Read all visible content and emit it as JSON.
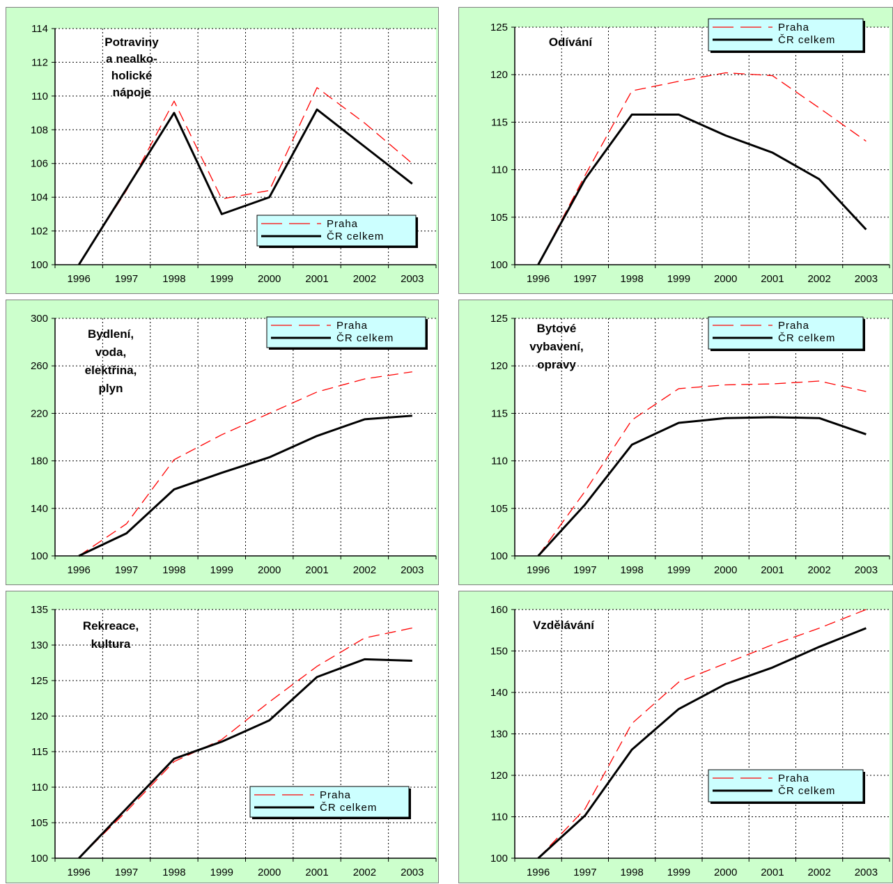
{
  "chart_data": [
    {
      "type": "line",
      "title": "Potraviny a nealko-holické nápoje",
      "title_lines": [
        "Potraviny",
        "a nealko-",
        "holické",
        "nápoje"
      ],
      "categories": [
        "1996",
        "1997",
        "1998",
        "1999",
        "2000",
        "2001",
        "2002",
        "2003"
      ],
      "ylim": [
        100,
        114
      ],
      "yticks": [
        100,
        102,
        104,
        106,
        108,
        110,
        112,
        114
      ],
      "grid": true,
      "legend": "bottom-right",
      "series": [
        {
          "name": "Praha",
          "color": "#ff0000",
          "style": "dashed",
          "values": [
            100,
            104.4,
            109.7,
            103.9,
            104.4,
            110.5,
            108.4,
            106.0
          ]
        },
        {
          "name": "ČR celkem",
          "color": "#000000",
          "style": "solid",
          "values": [
            100,
            104.5,
            109.0,
            103.0,
            104.0,
            109.2,
            107.0,
            104.8
          ]
        }
      ]
    },
    {
      "type": "line",
      "title": "Odívání",
      "title_lines": [
        "Odívání"
      ],
      "categories": [
        "1996",
        "1997",
        "1998",
        "1999",
        "2000",
        "2001",
        "2002",
        "2003"
      ],
      "ylim": [
        100,
        125
      ],
      "yticks": [
        100,
        105,
        110,
        115,
        120,
        125
      ],
      "grid": true,
      "legend": "top-right",
      "series": [
        {
          "name": "Praha",
          "color": "#ff0000",
          "style": "dashed",
          "values": [
            100,
            109.4,
            118.3,
            119.3,
            120.2,
            119.9,
            116.5,
            113.0
          ]
        },
        {
          "name": "ČR celkem",
          "color": "#000000",
          "style": "solid",
          "values": [
            100,
            109.0,
            115.8,
            115.8,
            113.6,
            111.8,
            109.0,
            103.7
          ]
        }
      ]
    },
    {
      "type": "line",
      "title": "Bydlení, voda, elektřina, plyn",
      "title_lines": [
        "Bydlení,",
        "voda,",
        "elektřina,",
        "plyn"
      ],
      "categories": [
        "1996",
        "1997",
        "1998",
        "1999",
        "2000",
        "2001",
        "2002",
        "2003"
      ],
      "ylim": [
        100,
        300
      ],
      "yticks": [
        100,
        140,
        180,
        220,
        260,
        300
      ],
      "grid": true,
      "legend": "top-right",
      "series": [
        {
          "name": "Praha",
          "color": "#ff0000",
          "style": "dashed",
          "values": [
            100,
            127,
            181,
            202,
            220,
            238,
            249,
            255
          ]
        },
        {
          "name": "ČR celkem",
          "color": "#000000",
          "style": "solid",
          "values": [
            100,
            119,
            156,
            170,
            183,
            201,
            215,
            218
          ]
        }
      ]
    },
    {
      "type": "line",
      "title": "Bytové vybavení, opravy",
      "title_lines": [
        "Bytové",
        "vybavení,",
        "opravy"
      ],
      "categories": [
        "1996",
        "1997",
        "1998",
        "1999",
        "2000",
        "2001",
        "2002",
        "2003"
      ],
      "ylim": [
        100,
        125
      ],
      "yticks": [
        100,
        105,
        110,
        115,
        120,
        125
      ],
      "grid": true,
      "legend": "top-right",
      "series": [
        {
          "name": "Praha",
          "color": "#ff0000",
          "style": "dashed",
          "values": [
            100,
            106.8,
            114.3,
            117.6,
            118.0,
            118.1,
            118.4,
            117.3
          ]
        },
        {
          "name": "ČR celkem",
          "color": "#000000",
          "style": "solid",
          "values": [
            100,
            105.4,
            111.7,
            114.0,
            114.5,
            114.6,
            114.5,
            112.8
          ]
        }
      ]
    },
    {
      "type": "line",
      "title": "Rekreace, kultura",
      "title_lines": [
        "Rekreace,",
        "kultura"
      ],
      "categories": [
        "1996",
        "1997",
        "1998",
        "1999",
        "2000",
        "2001",
        "2002",
        "2003"
      ],
      "ylim": [
        100,
        135
      ],
      "yticks": [
        100,
        105,
        110,
        115,
        120,
        125,
        130,
        135
      ],
      "grid": true,
      "legend": "bottom-right",
      "series": [
        {
          "name": "Praha",
          "color": "#ff0000",
          "style": "dashed",
          "values": [
            100,
            106.6,
            113.6,
            116.7,
            122.0,
            127.0,
            131.0,
            132.4
          ]
        },
        {
          "name": "ČR celkem",
          "color": "#000000",
          "style": "solid",
          "values": [
            100,
            107.0,
            114.0,
            116.4,
            119.4,
            125.5,
            128.0,
            127.8
          ]
        }
      ]
    },
    {
      "type": "line",
      "title": "Vzdělávání",
      "title_lines": [
        "Vzdělávání"
      ],
      "categories": [
        "1996",
        "1997",
        "1998",
        "1999",
        "2000",
        "2001",
        "2002",
        "2003"
      ],
      "ylim": [
        100,
        160
      ],
      "yticks": [
        100,
        110,
        120,
        130,
        140,
        150,
        160
      ],
      "grid": true,
      "legend": "bottom-right",
      "series": [
        {
          "name": "Praha",
          "color": "#ff0000",
          "style": "dashed",
          "values": [
            100,
            111.9,
            132.5,
            142.5,
            147.0,
            151.5,
            155.5,
            160.0
          ]
        },
        {
          "name": "ČR celkem",
          "color": "#000000",
          "style": "solid",
          "values": [
            100,
            110.3,
            126.2,
            136.0,
            142.0,
            146.0,
            151.0,
            155.5
          ]
        }
      ]
    }
  ]
}
